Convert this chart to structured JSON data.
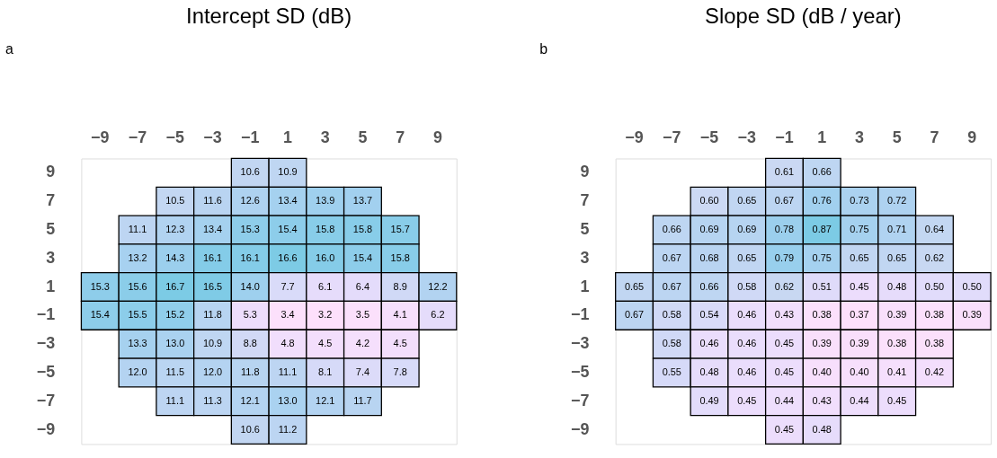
{
  "chart_data": [
    {
      "type": "heatmap",
      "title": "Intercept SD (dB)",
      "annotations": [
        "a"
      ],
      "data_labels": true,
      "categories": [
        "−9",
        "−7",
        "−5",
        "−3",
        "−1",
        "1",
        "3",
        "5",
        "7",
        "9"
      ],
      "y_categories": [
        "9",
        "7",
        "5",
        "3",
        "1",
        "−1",
        "−3",
        "−5",
        "−7",
        "−9"
      ],
      "cells": [
        [
          null,
          null,
          null,
          null,
          10.6,
          10.9,
          null,
          null,
          null,
          null
        ],
        [
          null,
          null,
          10.5,
          11.6,
          12.6,
          13.4,
          13.9,
          13.7,
          null,
          null
        ],
        [
          null,
          11.1,
          12.3,
          13.4,
          15.3,
          15.4,
          15.8,
          15.8,
          15.7,
          null
        ],
        [
          null,
          13.2,
          14.3,
          16.1,
          16.1,
          16.6,
          16.0,
          15.4,
          15.8,
          null
        ],
        [
          15.3,
          15.6,
          16.7,
          16.5,
          14.0,
          7.7,
          6.1,
          6.4,
          8.9,
          12.2
        ],
        [
          15.4,
          15.5,
          15.2,
          11.8,
          5.3,
          3.4,
          3.2,
          3.5,
          4.1,
          6.2
        ],
        [
          null,
          13.3,
          13.0,
          10.9,
          8.8,
          4.8,
          4.5,
          4.2,
          4.5,
          null
        ],
        [
          null,
          12.0,
          11.5,
          12.0,
          11.8,
          11.1,
          8.1,
          7.4,
          7.8,
          null
        ],
        [
          null,
          null,
          11.1,
          11.3,
          12.1,
          13.0,
          12.1,
          11.7,
          null,
          null
        ],
        [
          null,
          null,
          null,
          null,
          10.6,
          11.2,
          null,
          null,
          null,
          null
        ]
      ],
      "cell_labels": [
        [
          null,
          null,
          null,
          null,
          "10.6",
          "10.9",
          null,
          null,
          null,
          null
        ],
        [
          null,
          null,
          "10.5",
          "11.6",
          "12.6",
          "13.4",
          "13.9",
          "13.7",
          null,
          null
        ],
        [
          null,
          "11.1",
          "12.3",
          "13.4",
          "15.3",
          "15.4",
          "15.8",
          "15.8",
          "15.7",
          null
        ],
        [
          null,
          "13.2",
          "14.3",
          "16.1",
          "16.1",
          "16.6",
          "16.0",
          "15.4",
          "15.8",
          null
        ],
        [
          "15.3",
          "15.6",
          "16.7",
          "16.5",
          "14.0",
          "7.7",
          "6.1",
          "6.4",
          "8.9",
          "12.2"
        ],
        [
          "15.4",
          "15.5",
          "15.2",
          "11.8",
          "5.3",
          "3.4",
          "3.2",
          "3.5",
          "4.1",
          "6.2"
        ],
        [
          null,
          "13.3",
          "13.0",
          "10.9",
          "8.8",
          "4.8",
          "4.5",
          "4.2",
          "4.5",
          null
        ],
        [
          null,
          "12.0",
          "11.5",
          "12.0",
          "11.8",
          "11.1",
          "8.1",
          "7.4",
          "7.8",
          null
        ],
        [
          null,
          null,
          "11.1",
          "11.3",
          "12.1",
          "13.0",
          "12.1",
          "11.7",
          null,
          null
        ],
        [
          null,
          null,
          null,
          null,
          "10.6",
          "11.2",
          null,
          null,
          null,
          null
        ]
      ]
    },
    {
      "type": "heatmap",
      "title": "Slope SD (dB / year)",
      "annotations": [
        "b"
      ],
      "data_labels": true,
      "categories": [
        "−9",
        "−7",
        "−5",
        "−3",
        "−1",
        "1",
        "3",
        "5",
        "7",
        "9"
      ],
      "y_categories": [
        "9",
        "7",
        "5",
        "3",
        "1",
        "−1",
        "−3",
        "−5",
        "−7",
        "−9"
      ],
      "cells": [
        [
          null,
          null,
          null,
          null,
          0.61,
          0.66,
          null,
          null,
          null,
          null
        ],
        [
          null,
          null,
          0.6,
          0.65,
          0.67,
          0.76,
          0.73,
          0.72,
          null,
          null
        ],
        [
          null,
          0.66,
          0.69,
          0.69,
          0.78,
          0.87,
          0.75,
          0.71,
          0.64,
          null
        ],
        [
          null,
          0.67,
          0.68,
          0.65,
          0.79,
          0.75,
          0.65,
          0.65,
          0.62,
          null
        ],
        [
          0.65,
          0.67,
          0.66,
          0.58,
          0.62,
          0.51,
          0.45,
          0.48,
          0.5,
          0.5
        ],
        [
          0.67,
          0.58,
          0.54,
          0.46,
          0.43,
          0.38,
          0.37,
          0.39,
          0.38,
          0.39
        ],
        [
          null,
          0.58,
          0.46,
          0.46,
          0.45,
          0.39,
          0.39,
          0.38,
          0.38,
          null
        ],
        [
          null,
          0.55,
          0.48,
          0.46,
          0.45,
          0.4,
          0.4,
          0.41,
          0.42,
          null
        ],
        [
          null,
          null,
          0.49,
          0.45,
          0.44,
          0.43,
          0.44,
          0.45,
          null,
          null
        ],
        [
          null,
          null,
          null,
          null,
          0.45,
          0.48,
          null,
          null,
          null,
          null
        ]
      ],
      "cell_labels": [
        [
          null,
          null,
          null,
          null,
          "0.61",
          "0.66",
          null,
          null,
          null,
          null
        ],
        [
          null,
          null,
          "0.60",
          "0.65",
          "0.67",
          "0.76",
          "0.73",
          "0.72",
          null,
          null
        ],
        [
          null,
          "0.66",
          "0.69",
          "0.69",
          "0.78",
          "0.87",
          "0.75",
          "0.71",
          "0.64",
          null
        ],
        [
          null,
          "0.67",
          "0.68",
          "0.65",
          "0.79",
          "0.75",
          "0.65",
          "0.65",
          "0.62",
          null
        ],
        [
          "0.65",
          "0.67",
          "0.66",
          "0.58",
          "0.62",
          "0.51",
          "0.45",
          "0.48",
          "0.50",
          "0.50"
        ],
        [
          "0.67",
          "0.58",
          "0.54",
          "0.46",
          "0.43",
          "0.38",
          "0.37",
          "0.39",
          "0.38",
          "0.39"
        ],
        [
          null,
          "0.58",
          "0.46",
          "0.46",
          "0.45",
          "0.39",
          "0.39",
          "0.38",
          "0.38",
          null
        ],
        [
          null,
          "0.55",
          "0.48",
          "0.46",
          "0.45",
          "0.40",
          "0.40",
          "0.41",
          "0.42",
          null
        ],
        [
          null,
          null,
          "0.49",
          "0.45",
          "0.44",
          "0.43",
          "0.44",
          "0.45",
          null,
          null
        ],
        [
          null,
          null,
          null,
          null,
          "0.45",
          "0.48",
          null,
          null,
          null,
          null
        ]
      ]
    }
  ]
}
